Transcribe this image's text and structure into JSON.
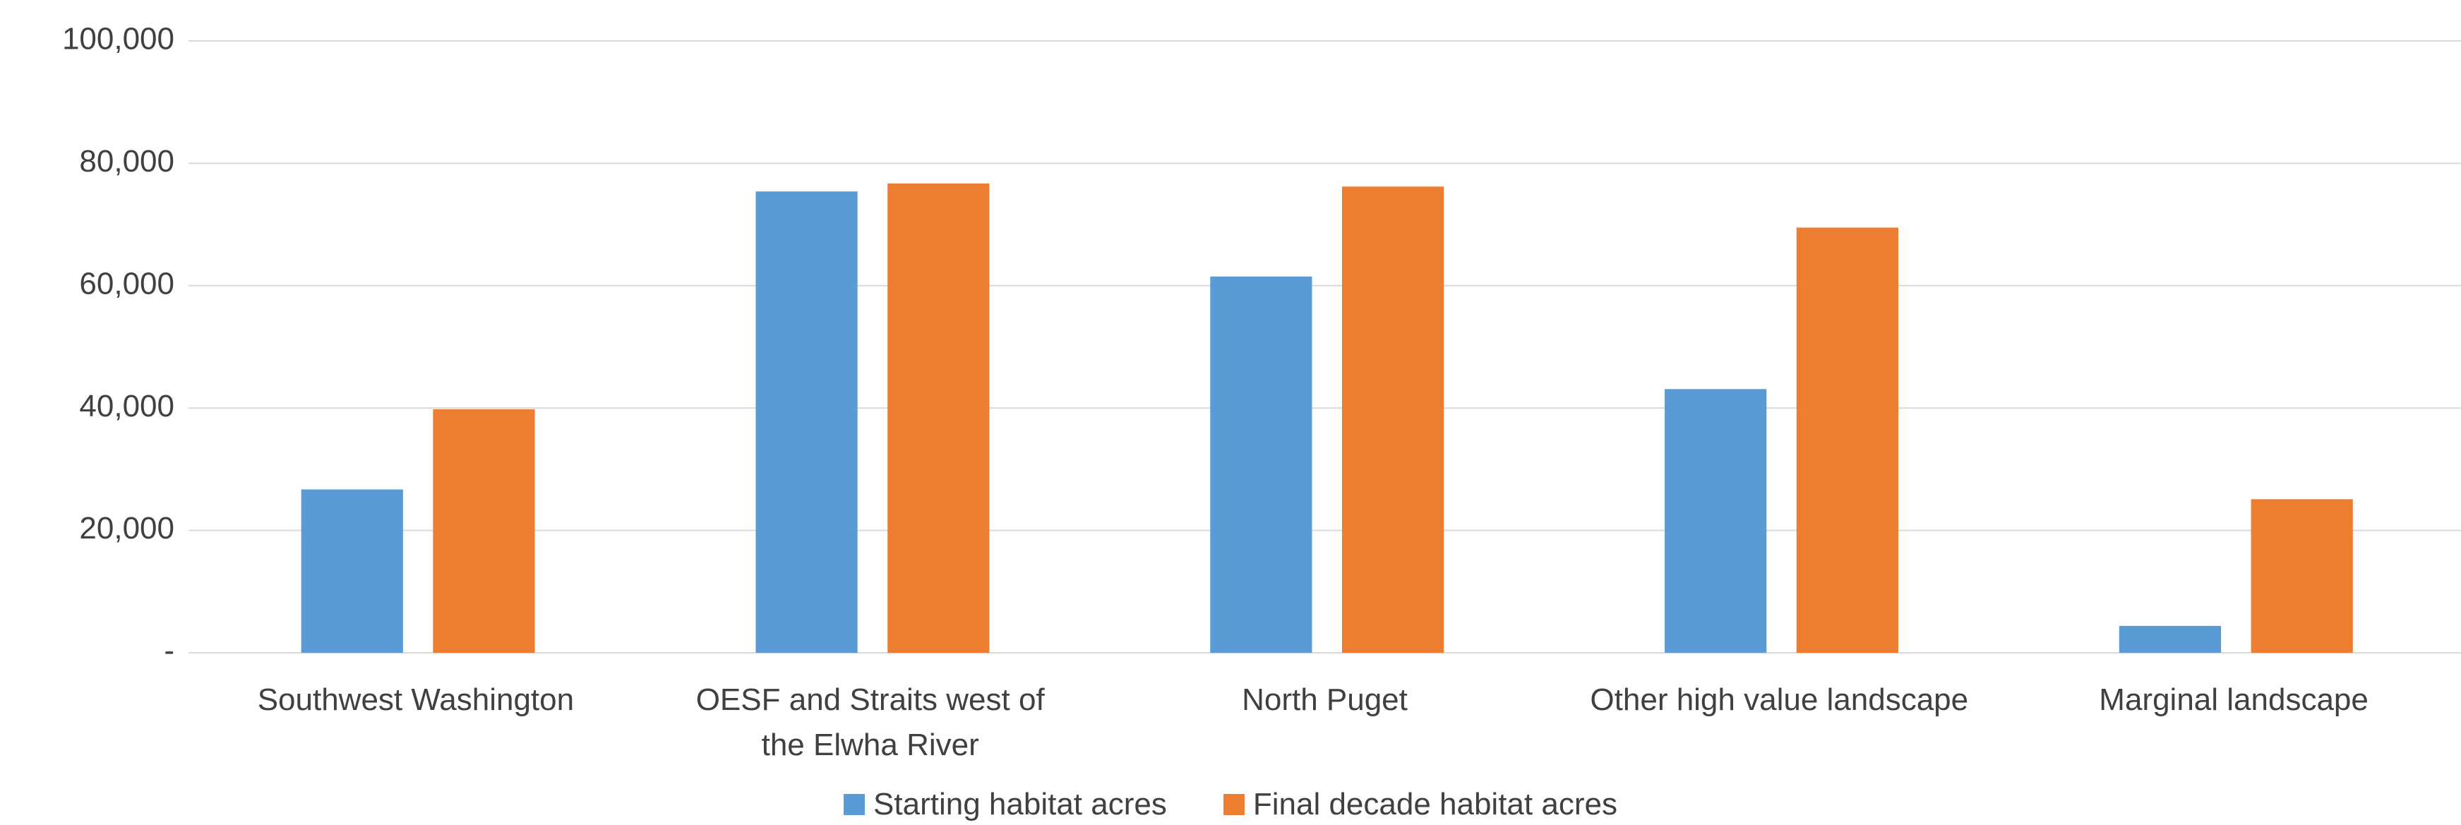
{
  "chart_data": {
    "type": "bar",
    "categories": [
      "Southwest Washington",
      "OESF and Straits west of the Elwha River",
      "North Puget",
      "Other high value landscape",
      "Marginal landscape"
    ],
    "series": [
      {
        "name": "Starting habitat acres",
        "color": "#5b9bd5",
        "values": [
          26700,
          75400,
          61500,
          43100,
          4400
        ]
      },
      {
        "name": "Final decade habitat acres",
        "color": "#ed7d31",
        "values": [
          39800,
          76700,
          76200,
          69500,
          25100
        ]
      }
    ],
    "ylim": [
      0,
      100000
    ],
    "yticks": [
      {
        "value": 0,
        "label": "-"
      },
      {
        "value": 20000,
        "label": "20,000"
      },
      {
        "value": 40000,
        "label": "40,000"
      },
      {
        "value": 60000,
        "label": "60,000"
      },
      {
        "value": 80000,
        "label": "80,000"
      },
      {
        "value": 100000,
        "label": "100,000"
      }
    ],
    "grid": true,
    "legend": "bottom"
  }
}
